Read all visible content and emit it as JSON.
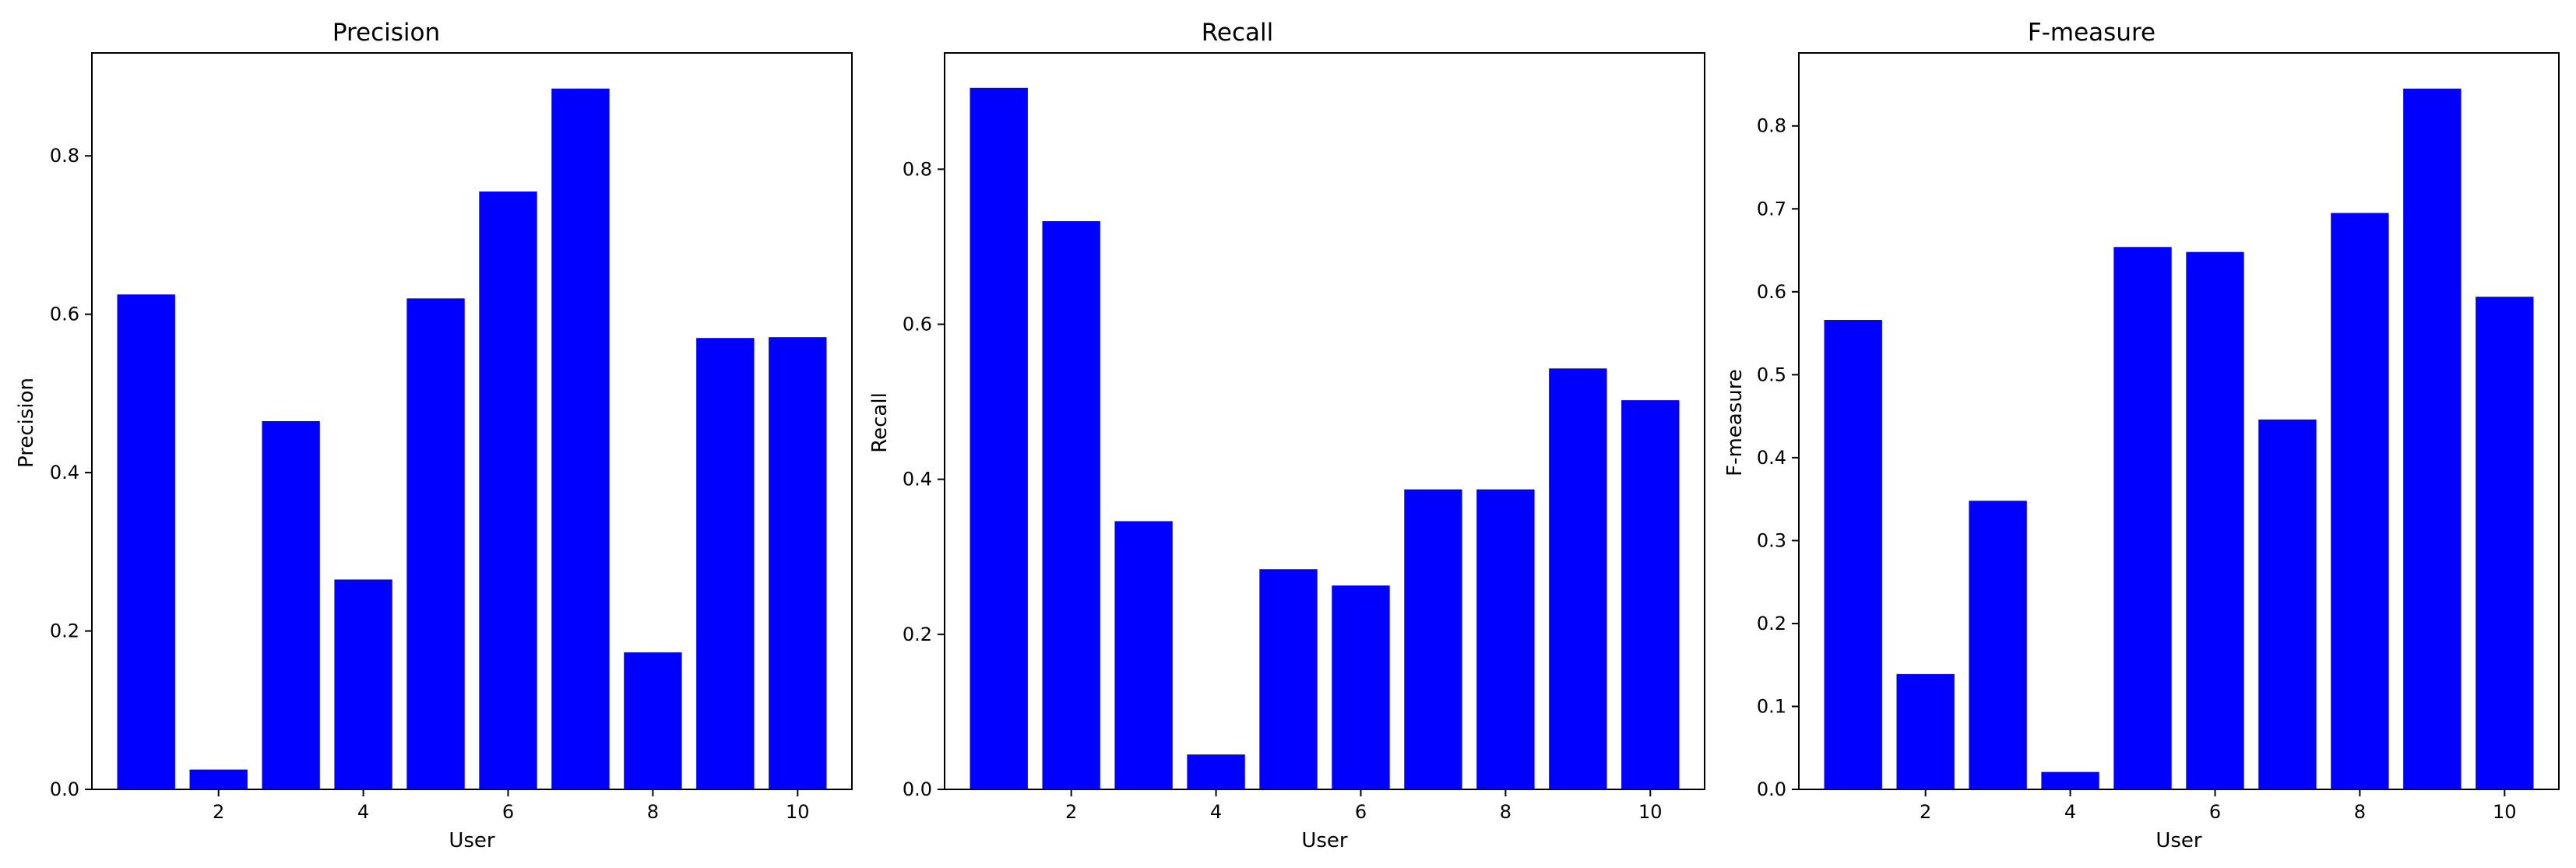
{
  "chart_data": [
    {
      "type": "bar",
      "title": "Precision",
      "xlabel": "User",
      "ylabel": "Precision",
      "categories": [
        1,
        2,
        3,
        4,
        5,
        6,
        7,
        8,
        9,
        10
      ],
      "values": [
        0.625,
        0.025,
        0.465,
        0.265,
        0.62,
        0.755,
        0.885,
        0.173,
        0.57,
        0.571
      ],
      "xticks": [
        "2",
        "4",
        "6",
        "8",
        "10"
      ],
      "yticks": [
        "0.0",
        "0.2",
        "0.4",
        "0.6",
        "0.8"
      ],
      "ylim": [
        0,
        0.93
      ],
      "bar_color": "#0000ff",
      "grid": false,
      "legend": false
    },
    {
      "type": "bar",
      "title": "Recall",
      "xlabel": "User",
      "ylabel": "Recall",
      "categories": [
        1,
        2,
        3,
        4,
        5,
        6,
        7,
        8,
        9,
        10
      ],
      "values": [
        0.905,
        0.733,
        0.346,
        0.045,
        0.284,
        0.263,
        0.387,
        0.387,
        0.543,
        0.502
      ],
      "xticks": [
        "2",
        "4",
        "6",
        "8",
        "10"
      ],
      "yticks": [
        "0.0",
        "0.2",
        "0.4",
        "0.6",
        "0.8"
      ],
      "ylim": [
        0,
        0.95
      ],
      "bar_color": "#0000ff",
      "grid": false,
      "legend": false
    },
    {
      "type": "bar",
      "title": "F-measure",
      "xlabel": "User",
      "ylabel": "F-measure",
      "categories": [
        1,
        2,
        3,
        4,
        5,
        6,
        7,
        8,
        9,
        10
      ],
      "values": [
        0.566,
        0.139,
        0.348,
        0.021,
        0.654,
        0.648,
        0.446,
        0.695,
        0.845,
        0.594
      ],
      "xticks": [
        "2",
        "4",
        "6",
        "8",
        "10"
      ],
      "yticks": [
        "0.0",
        "0.1",
        "0.2",
        "0.3",
        "0.4",
        "0.5",
        "0.6",
        "0.7",
        "0.8"
      ],
      "ylim": [
        0,
        0.888
      ],
      "bar_color": "#0000ff",
      "grid": false,
      "legend": false
    }
  ]
}
